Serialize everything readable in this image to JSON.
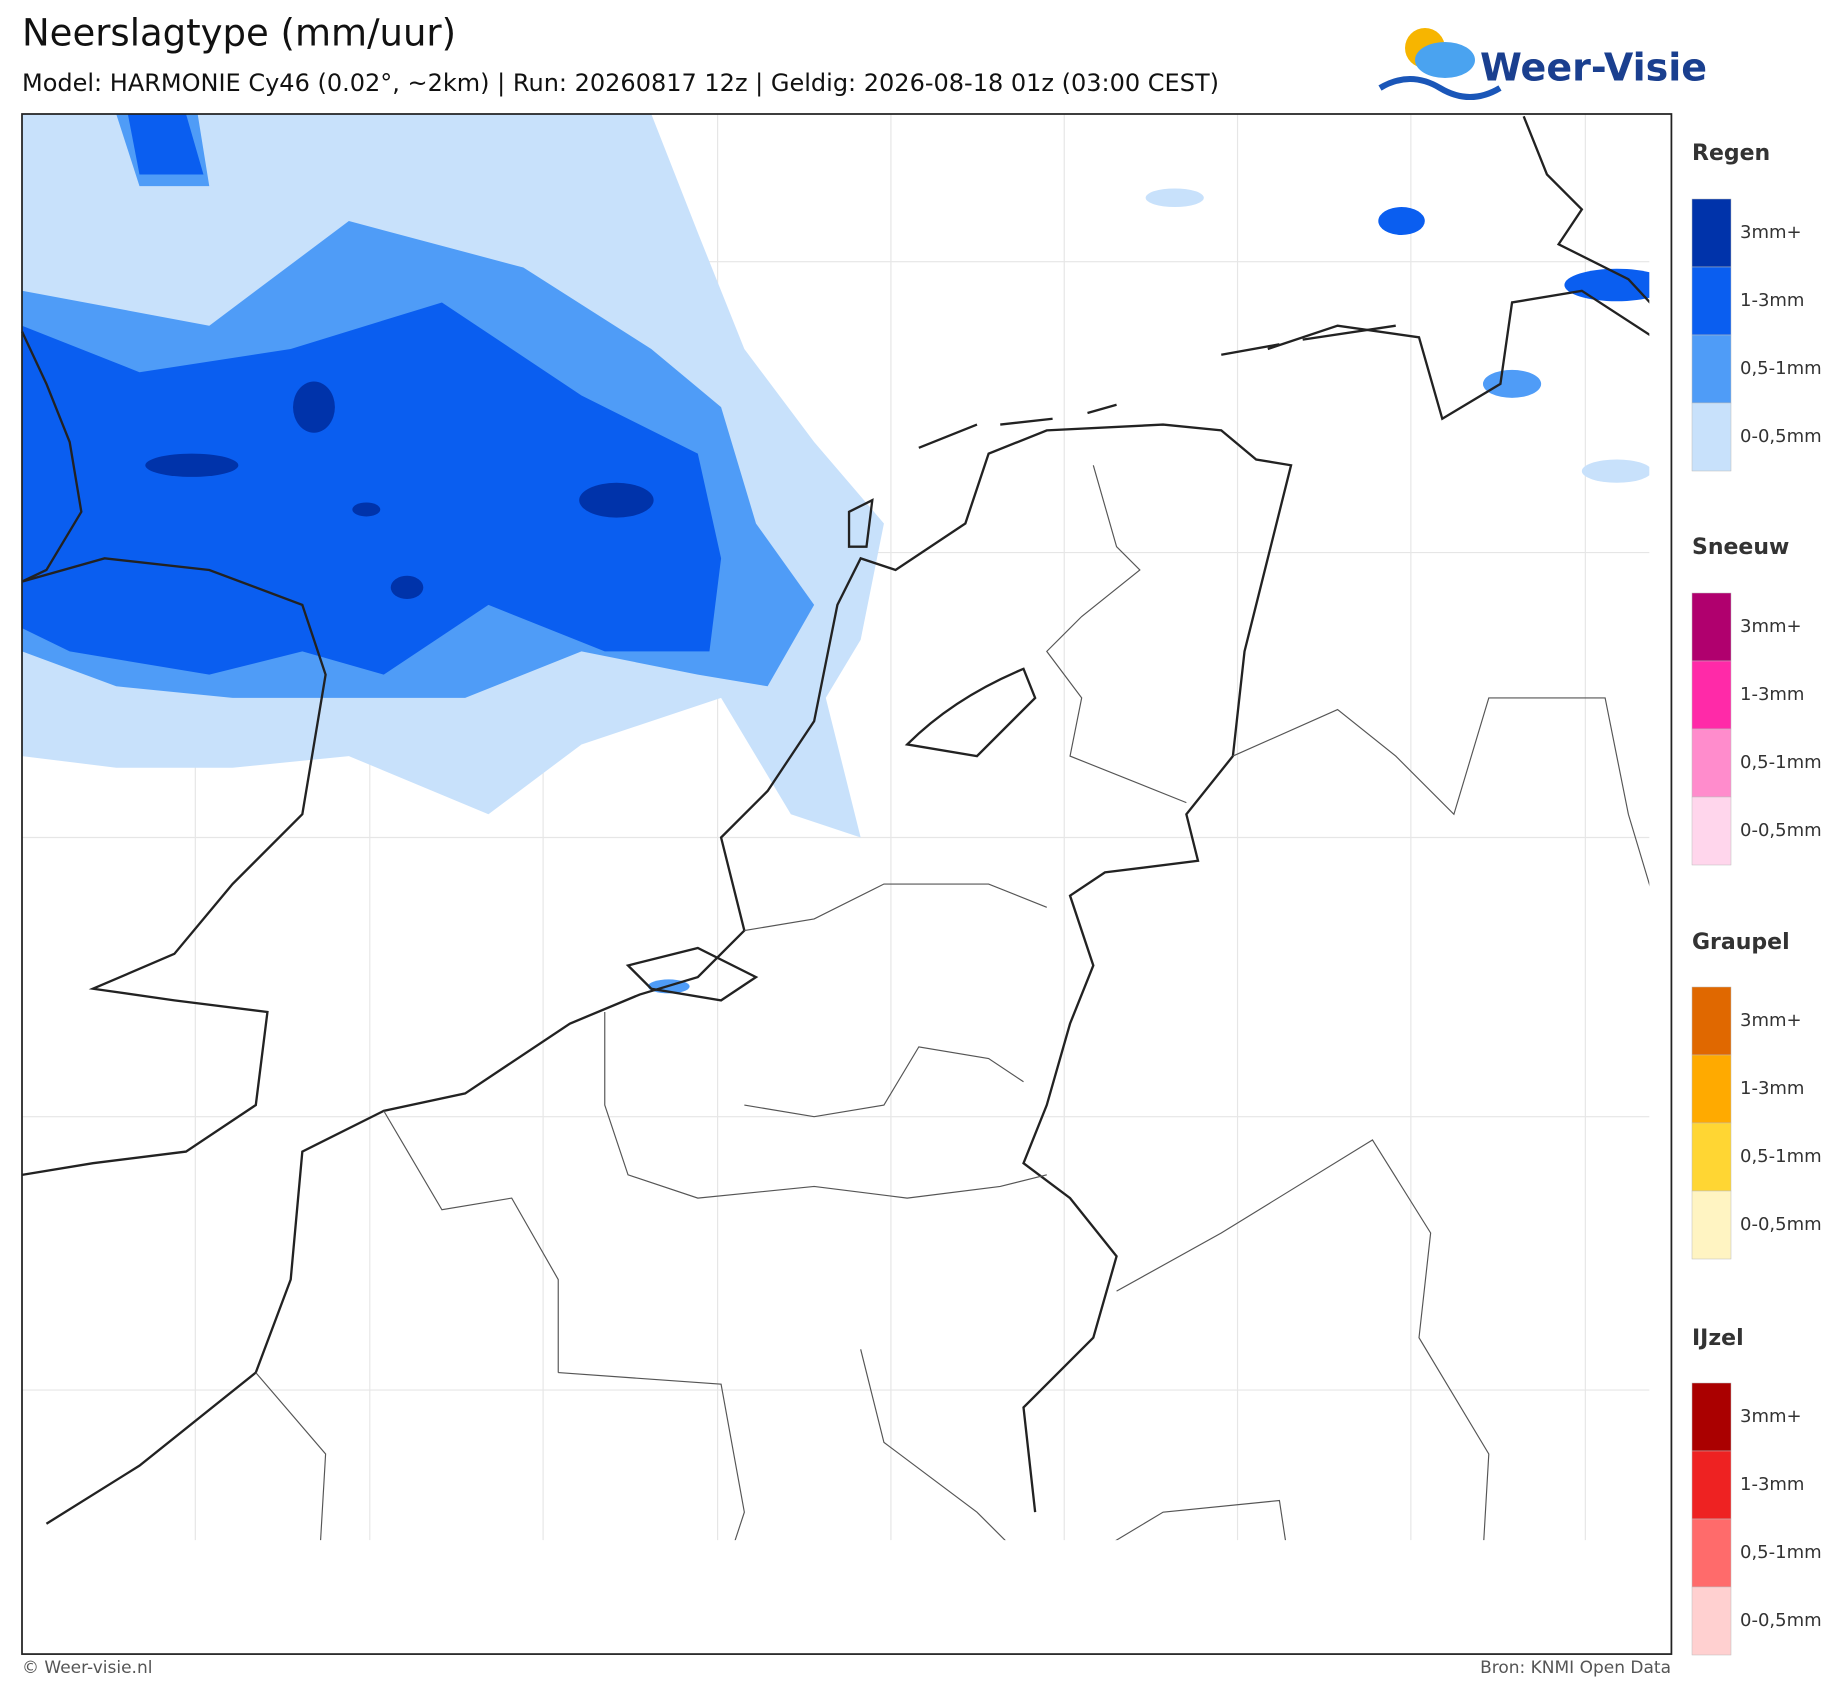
{
  "header": {
    "title": "Neerslagtype (mm/uur)",
    "subtitle": "Model: HARMONIE Cy46 (0.02°, ~2km)  |  Run: 20260817 12z  |  Geldig: 2026-08-18 01z (03:00 CEST)"
  },
  "logo": "Weer-Visie",
  "legend": [
    {
      "title": "Regen",
      "items": [
        "3mm+",
        "1-3mm",
        "0,5-1mm",
        "0-0,5mm"
      ],
      "colors": [
        "#0033aa",
        "#0a5ef0",
        "#4f9cf7",
        "#c8e1fb"
      ]
    },
    {
      "title": "Sneeuw",
      "items": [
        "3mm+",
        "1-3mm",
        "0,5-1mm",
        "0-0,5mm"
      ],
      "colors": [
        "#b0006e",
        "#ff2aa8",
        "#ff8ccc",
        "#ffd6ec"
      ]
    },
    {
      "title": "Graupel",
      "items": [
        "3mm+",
        "1-3mm",
        "0,5-1mm",
        "0-0,5mm"
      ],
      "colors": [
        "#e06800",
        "#ffaa00",
        "#ffd633",
        "#fff4c2"
      ]
    },
    {
      "title": "IJzel",
      "items": [
        "3mm+",
        "1-3mm",
        "0,5-1mm",
        "0-0,5mm"
      ],
      "colors": [
        "#aa0000",
        "#ee2222",
        "#ff6b6b",
        "#ffd0d0"
      ]
    }
  ],
  "footer": {
    "left": "© Weer-visie.nl",
    "right": "Bron: KNMI Open Data"
  }
}
